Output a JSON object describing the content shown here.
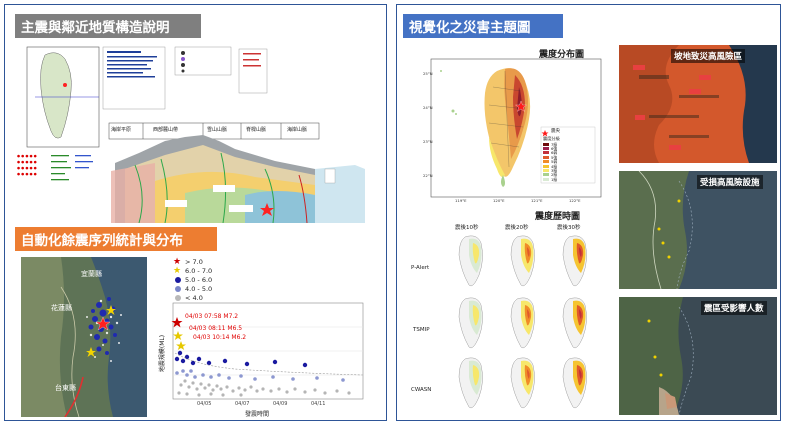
{
  "left_panel": {
    "section1_title": "主震與鄰近地質構造說明",
    "geo_regions": [
      "海岸平原",
      "西部麓山帶",
      "雪山山脈",
      "脊樑山脈",
      "海岸山脈"
    ],
    "section2_title": "自動化餘震序列統計與分布",
    "aftershock_map_labels": [
      "宜蘭縣",
      "花蓮縣",
      "台東縣"
    ],
    "legend": [
      {
        "label": "> 7.0",
        "color": "#cc0000",
        "shape": "star"
      },
      {
        "label": "6.0 - 7.0",
        "color": "#e6c800",
        "shape": "star"
      },
      {
        "label": "5.0 - 6.0",
        "color": "#1a1aa0",
        "shape": "circle"
      },
      {
        "label": "4.0 - 5.0",
        "color": "#7a86c8",
        "shape": "circle"
      },
      {
        "label": "< 4.0",
        "color": "#b9b9b9",
        "shape": "circle"
      }
    ],
    "event_annotations": [
      "04/03 07:58 M7.2",
      "04/03 08:11 M6.5",
      "04/03 10:14 M6.2"
    ],
    "scatter_ylabel": "地震規模(ML)",
    "scatter_xlabel": "發震時間",
    "scatter_xticks": [
      "04/05",
      "04/07",
      "04/09",
      "04/11"
    ]
  },
  "right_panel": {
    "title": "視覺化之災害主題圖",
    "intensity_map_title": "震度分布圖",
    "intensity_legend_title": "震度分級",
    "intensity_levels": [
      "7級",
      "6強",
      "6弱",
      "5強",
      "5弱",
      "4級",
      "3級",
      "2級",
      "1級"
    ],
    "intensity_colors": [
      "#6e0b0b",
      "#9b1e4b",
      "#c2303a",
      "#e05a2a",
      "#f08c28",
      "#f5c431",
      "#f7e76b",
      "#a9d18e",
      "#d9ead3"
    ],
    "epicenter_label": "震央",
    "map_lon_ticks": [
      "119°E",
      "120°E",
      "121°E",
      "122°E"
    ],
    "map_lat_ticks": [
      "25°N",
      "24°N",
      "23°N",
      "22°N"
    ],
    "history_title": "震度歷時圖",
    "history_columns": [
      "震後10秒",
      "震後20秒",
      "震後30秒"
    ],
    "history_rows": [
      "P-Alert",
      "TSMIP",
      "CWASN"
    ],
    "thumb_titles": [
      "坡地致災高風險區",
      "受損高風險設施",
      "震區受影響人數"
    ]
  }
}
